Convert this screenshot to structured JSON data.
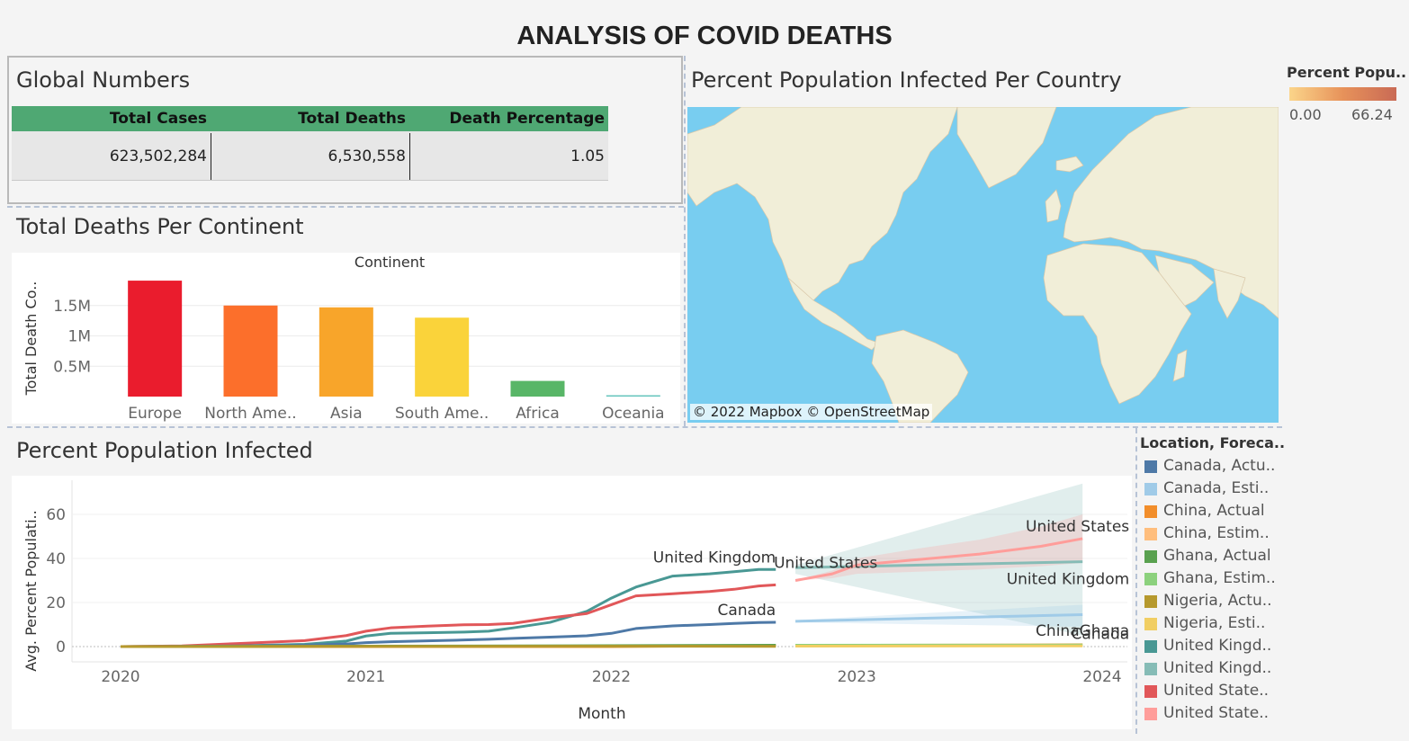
{
  "dashboard": {
    "title": "ANALYSIS OF COVID DEATHS"
  },
  "global_numbers": {
    "title": "Global Numbers",
    "headers": [
      "Total Cases",
      "Total Deaths",
      "Death Percentage"
    ],
    "values": [
      "623,502,284",
      "6,530,558",
      "1.05"
    ],
    "header_color": "#4fa873"
  },
  "map": {
    "title": "Percent Population Infected Per Country",
    "attribution": "© 2022 Mapbox © OpenStreetMap",
    "legend_title": "Percent Popu..",
    "legend_min": "0.00",
    "legend_max": "66.24",
    "ocean_color": "#78cdf0",
    "land_color": "#f1eed8",
    "gradient": [
      "#fbd58a",
      "#e7925a",
      "#c96a55"
    ]
  },
  "deaths_chart_panel": {
    "title": "Total Deaths Per Continent"
  },
  "infected_chart_panel": {
    "title": "Percent Population Infected"
  },
  "chart_data": [
    {
      "type": "bar",
      "title": "Continent",
      "ylabel": "Total Death Co..",
      "categories": [
        "Europe",
        "North Ame..",
        "Asia",
        "South Ame..",
        "Africa",
        "Oceania"
      ],
      "values": [
        1910000,
        1500000,
        1470000,
        1300000,
        258000,
        22000
      ],
      "colors": [
        "#ea1c2d",
        "#fc6f2b",
        "#f8a52a",
        "#fad33a",
        "#58b667",
        "#64c5bd"
      ],
      "yticks": [
        500000,
        1000000,
        1500000
      ],
      "ytick_labels": [
        "0.5M",
        "1M",
        "1.5M"
      ],
      "ylim": [
        0,
        2000000
      ]
    },
    {
      "type": "line",
      "ylabel": "Avg. Percent Populati..",
      "xlabel": "Month",
      "xticks": [
        "2020",
        "2021",
        "2022",
        "2023",
        "2024"
      ],
      "yticks": [
        0,
        20,
        40,
        60
      ],
      "ylim": [
        -2,
        75
      ],
      "xlim": [
        2019.75,
        2024.2
      ],
      "legend_title": "Location, Foreca..",
      "legend": [
        {
          "label": "Canada, Actu..",
          "color": "#4e79a7"
        },
        {
          "label": "Canada, Esti..",
          "color": "#a0cbe8"
        },
        {
          "label": "China, Actual",
          "color": "#f28e2b"
        },
        {
          "label": "China, Estim..",
          "color": "#ffbe7d"
        },
        {
          "label": "Ghana, Actual",
          "color": "#59a14f"
        },
        {
          "label": "Ghana, Estim..",
          "color": "#8cd17d"
        },
        {
          "label": "Nigeria, Actu..",
          "color": "#b6992d"
        },
        {
          "label": "Nigeria, Esti..",
          "color": "#f1ce63"
        },
        {
          "label": "United Kingd..",
          "color": "#499894"
        },
        {
          "label": "United Kingd..",
          "color": "#86bcb6"
        },
        {
          "label": "United State..",
          "color": "#e15759"
        },
        {
          "label": "United State..",
          "color": "#ff9d9a"
        }
      ],
      "series": [
        {
          "name": "United Kingdom",
          "color": "#499894",
          "x": [
            2020.0,
            2020.25,
            2020.5,
            2020.75,
            2020.92,
            2021.0,
            2021.1,
            2021.25,
            2021.4,
            2021.5,
            2021.6,
            2021.75,
            2021.9,
            2022.0,
            2022.1,
            2022.25,
            2022.4,
            2022.5,
            2022.6,
            2022.67
          ],
          "y": [
            0,
            0.1,
            0.4,
            1.0,
            2.5,
            4.8,
            6.0,
            6.3,
            6.6,
            7.0,
            8.5,
            11.0,
            16.0,
            22.0,
            27.0,
            32.0,
            33.0,
            34.0,
            35.0,
            35.0
          ]
        },
        {
          "name": "United States",
          "color": "#e15759",
          "x": [
            2020.0,
            2020.25,
            2020.5,
            2020.75,
            2020.92,
            2021.0,
            2021.1,
            2021.25,
            2021.4,
            2021.5,
            2021.6,
            2021.75,
            2021.9,
            2022.0,
            2022.1,
            2022.25,
            2022.4,
            2022.5,
            2022.6,
            2022.67
          ],
          "y": [
            0,
            0.3,
            1.5,
            2.7,
            5.0,
            7.0,
            8.5,
            9.3,
            9.9,
            10.0,
            10.5,
            13.0,
            15.0,
            19.0,
            23.0,
            24.0,
            25.0,
            26.0,
            27.5,
            28.0
          ]
        },
        {
          "name": "Canada",
          "color": "#4e79a7",
          "x": [
            2020.0,
            2020.25,
            2020.5,
            2020.75,
            2020.92,
            2021.0,
            2021.1,
            2021.25,
            2021.4,
            2021.5,
            2021.6,
            2021.75,
            2021.9,
            2022.0,
            2022.1,
            2022.25,
            2022.4,
            2022.5,
            2022.6,
            2022.67
          ],
          "y": [
            0,
            0.1,
            0.3,
            0.6,
            1.2,
            1.8,
            2.2,
            2.6,
            3.0,
            3.3,
            3.7,
            4.3,
            4.9,
            6.0,
            8.2,
            9.4,
            10.0,
            10.5,
            10.9,
            11.0
          ]
        },
        {
          "name": "China",
          "color": "#f28e2b",
          "x": [
            2020.0,
            2021.0,
            2022.0,
            2022.67
          ],
          "y": [
            0.005,
            0.01,
            0.02,
            0.5
          ]
        },
        {
          "name": "Ghana",
          "color": "#59a14f",
          "x": [
            2020.0,
            2021.0,
            2022.0,
            2022.67
          ],
          "y": [
            0.0,
            0.2,
            0.4,
            0.6
          ]
        },
        {
          "name": "Nigeria",
          "color": "#b6992d",
          "x": [
            2020.0,
            2021.0,
            2022.0,
            2022.67
          ],
          "y": [
            0.0,
            0.1,
            0.15,
            0.12
          ]
        },
        {
          "name": "United Kingdom",
          "color": "#86bcb6",
          "forecast": true,
          "x": [
            2022.75,
            2023.92
          ],
          "y": [
            35.8,
            38.5
          ],
          "band_low": [
            33.0,
            5.0
          ],
          "band_high": [
            37.0,
            74.0
          ]
        },
        {
          "name": "United States",
          "color": "#ff9d9a",
          "forecast": true,
          "x": [
            2022.75,
            2022.9,
            2023.0,
            2023.25,
            2023.5,
            2023.75,
            2023.92
          ],
          "y": [
            30.0,
            33.0,
            37.0,
            39.5,
            42.0,
            45.5,
            49.0
          ],
          "band_low": [
            30.0,
            31.0,
            33.0,
            34.0,
            35.0,
            36.5,
            38.0
          ],
          "band_high": [
            30.0,
            34.5,
            40.0,
            44.5,
            48.5,
            54.5,
            60.0
          ]
        },
        {
          "name": "Canada",
          "color": "#a0cbe8",
          "forecast": true,
          "x": [
            2022.75,
            2023.92
          ],
          "y": [
            11.5,
            14.5
          ],
          "band_low": [
            11.0,
            9.0
          ],
          "band_high": [
            12.0,
            19.0
          ]
        },
        {
          "name": "China",
          "color": "#ffbe7d",
          "forecast": true,
          "x": [
            2022.75,
            2023.92
          ],
          "y": [
            0.5,
            0.9
          ]
        },
        {
          "name": "Ghana",
          "color": "#8cd17d",
          "forecast": true,
          "x": [
            2022.75,
            2023.92
          ],
          "y": [
            0.6,
            0.7
          ]
        },
        {
          "name": "Nigeria",
          "color": "#f1ce63",
          "forecast": true,
          "x": [
            2022.75,
            2023.92
          ],
          "y": [
            0.2,
            0.3
          ]
        }
      ],
      "annotations": [
        {
          "text": "United Kingdom",
          "x": 2022.67,
          "y": 35
        },
        {
          "text": "Canada",
          "x": 2022.67,
          "y": 11
        },
        {
          "text": "United States",
          "x": 2022.75,
          "y": 30
        },
        {
          "text": "United States",
          "x": 2023.92,
          "y": 49
        },
        {
          "text": "United Kingdom",
          "x": 2023.92,
          "y": 38.5
        },
        {
          "text": "Canada",
          "x": 2023.92,
          "y": 14.5
        },
        {
          "text": "ChinaGhana",
          "x": 2023.92,
          "y": 0.8
        }
      ]
    }
  ]
}
